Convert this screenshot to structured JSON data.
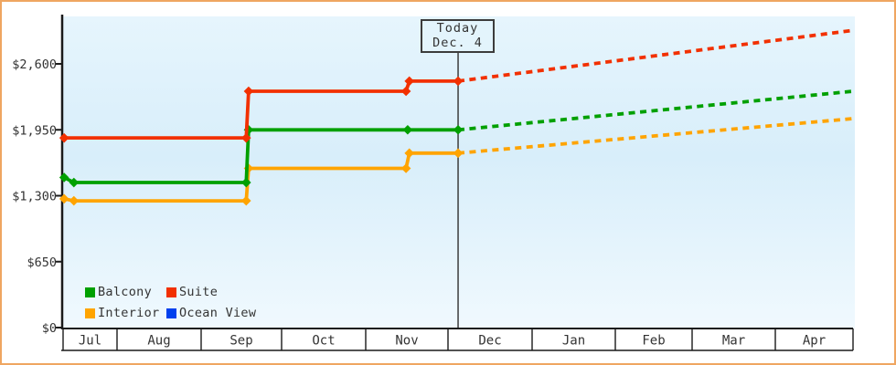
{
  "today_box": {
    "line1": "Today",
    "line2": "Dec. 4"
  },
  "legend": {
    "items": [
      {
        "label": "Balcony",
        "color": "#00a000"
      },
      {
        "label": "Suite",
        "color": "#f23000"
      },
      {
        "label": "Interior",
        "color": "#ffa400"
      },
      {
        "label": "Ocean View",
        "color": "#0040ee"
      }
    ]
  },
  "colors": {
    "frame_border": "#efa661",
    "plot_bg_top": "#e6f5fd",
    "plot_bg_mid": "#d8eefa",
    "plot_bg_bottom": "#f0f9fe",
    "axis": "#1a1a1a",
    "today_line": "#3c3c3c",
    "text": "#333333"
  },
  "chart_data": {
    "type": "line",
    "title": "",
    "x_categories": [
      "Jul",
      "Aug",
      "Sep",
      "Oct",
      "Nov",
      "Dec",
      "Jan",
      "Feb",
      "Mar",
      "Apr"
    ],
    "x_unit": "month-index: 0 = start of Jul cell (chart begins mid-Jul), 10 = right edge (end of Apr)",
    "y_tick_values": [
      0,
      650,
      1300,
      1950,
      2600
    ],
    "y_tick_labels": [
      "$0",
      "$650",
      "$1,300",
      "$1,950",
      "$2,600"
    ],
    "ylim": [
      0,
      3050
    ],
    "today": {
      "label": "Today",
      "date": "Dec. 4",
      "x": 5.12
    },
    "series": [
      {
        "name": "Suite",
        "color": "#f23000",
        "solid": [
          [
            0.02,
            1870
          ],
          [
            2.56,
            1870
          ],
          [
            2.59,
            2330
          ],
          [
            4.49,
            2330
          ],
          [
            4.53,
            2430
          ],
          [
            5.12,
            2430
          ]
        ],
        "projected": [
          [
            5.12,
            2430
          ],
          [
            10,
            2930
          ]
        ]
      },
      {
        "name": "Balcony",
        "color": "#00a000",
        "solid": [
          [
            0.02,
            1480
          ],
          [
            0.2,
            1430
          ],
          [
            2.56,
            1430
          ],
          [
            2.59,
            1950
          ],
          [
            4.51,
            1950
          ],
          [
            5.12,
            1950
          ]
        ],
        "projected": [
          [
            5.12,
            1950
          ],
          [
            10,
            2330
          ]
        ]
      },
      {
        "name": "Interior",
        "color": "#ffa400",
        "solid": [
          [
            0.02,
            1270
          ],
          [
            0.2,
            1250
          ],
          [
            2.56,
            1250
          ],
          [
            2.59,
            1570
          ],
          [
            4.49,
            1570
          ],
          [
            4.53,
            1720
          ],
          [
            5.12,
            1720
          ]
        ],
        "projected": [
          [
            5.12,
            1720
          ],
          [
            10,
            2060
          ]
        ]
      },
      {
        "name": "Ocean View",
        "color": "#0040ee",
        "solid": [],
        "projected": []
      }
    ]
  }
}
